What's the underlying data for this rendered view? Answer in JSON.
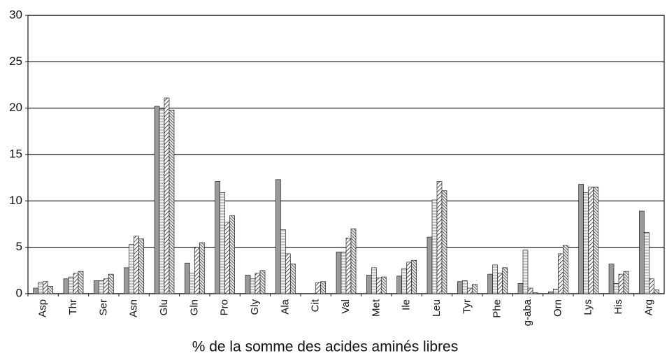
{
  "chart_data": {
    "type": "bar",
    "xlabel": "% de la somme des acides aminés libres",
    "categories": [
      "Asp",
      "Thr",
      "Ser",
      "Asn",
      "Glu",
      "Gln",
      "Pro",
      "Gly",
      "Ala",
      "Cit",
      "Val",
      "Met",
      "Ile",
      "Leu",
      "Tyr",
      "Phe",
      "g-aba",
      "Orn",
      "Lys",
      "His",
      "Arg"
    ],
    "series": [
      {
        "color": "#9a9a9a",
        "pattern": "solid",
        "values": [
          0.6,
          1.6,
          1.4,
          2.8,
          20.2,
          3.3,
          12.1,
          2.0,
          12.3,
          0,
          4.5,
          2.0,
          1.9,
          6.1,
          1.3,
          2.1,
          1.1,
          0.2,
          11.8,
          3.2,
          8.9
        ]
      },
      {
        "color": "#d8d8d8",
        "pattern": "dots",
        "values": [
          1.2,
          1.8,
          1.4,
          5.3,
          19.9,
          2.2,
          10.9,
          1.6,
          6.9,
          0,
          4.5,
          2.8,
          2.7,
          10.1,
          1.4,
          3.1,
          4.7,
          0.5,
          10.9,
          1.1,
          6.6
        ]
      },
      {
        "color": "#555555",
        "pattern": "diagonal",
        "values": [
          1.3,
          2.2,
          1.6,
          6.2,
          21.1,
          5.0,
          7.7,
          2.2,
          4.3,
          1.2,
          6.0,
          1.7,
          3.4,
          12.1,
          0.6,
          2.2,
          0.6,
          4.3,
          11.5,
          2.1,
          1.6
        ]
      },
      {
        "color": "#333333",
        "pattern": "cross",
        "values": [
          0.8,
          2.4,
          2.1,
          5.9,
          19.8,
          5.5,
          8.4,
          2.5,
          3.2,
          1.3,
          7.0,
          1.8,
          3.6,
          11.1,
          1.0,
          2.8,
          0.1,
          5.2,
          11.5,
          2.4,
          0.4
        ]
      }
    ],
    "ylim": [
      0,
      30
    ],
    "yticks": [
      0,
      5,
      10,
      15,
      20,
      25,
      30
    ],
    "grid": true
  }
}
